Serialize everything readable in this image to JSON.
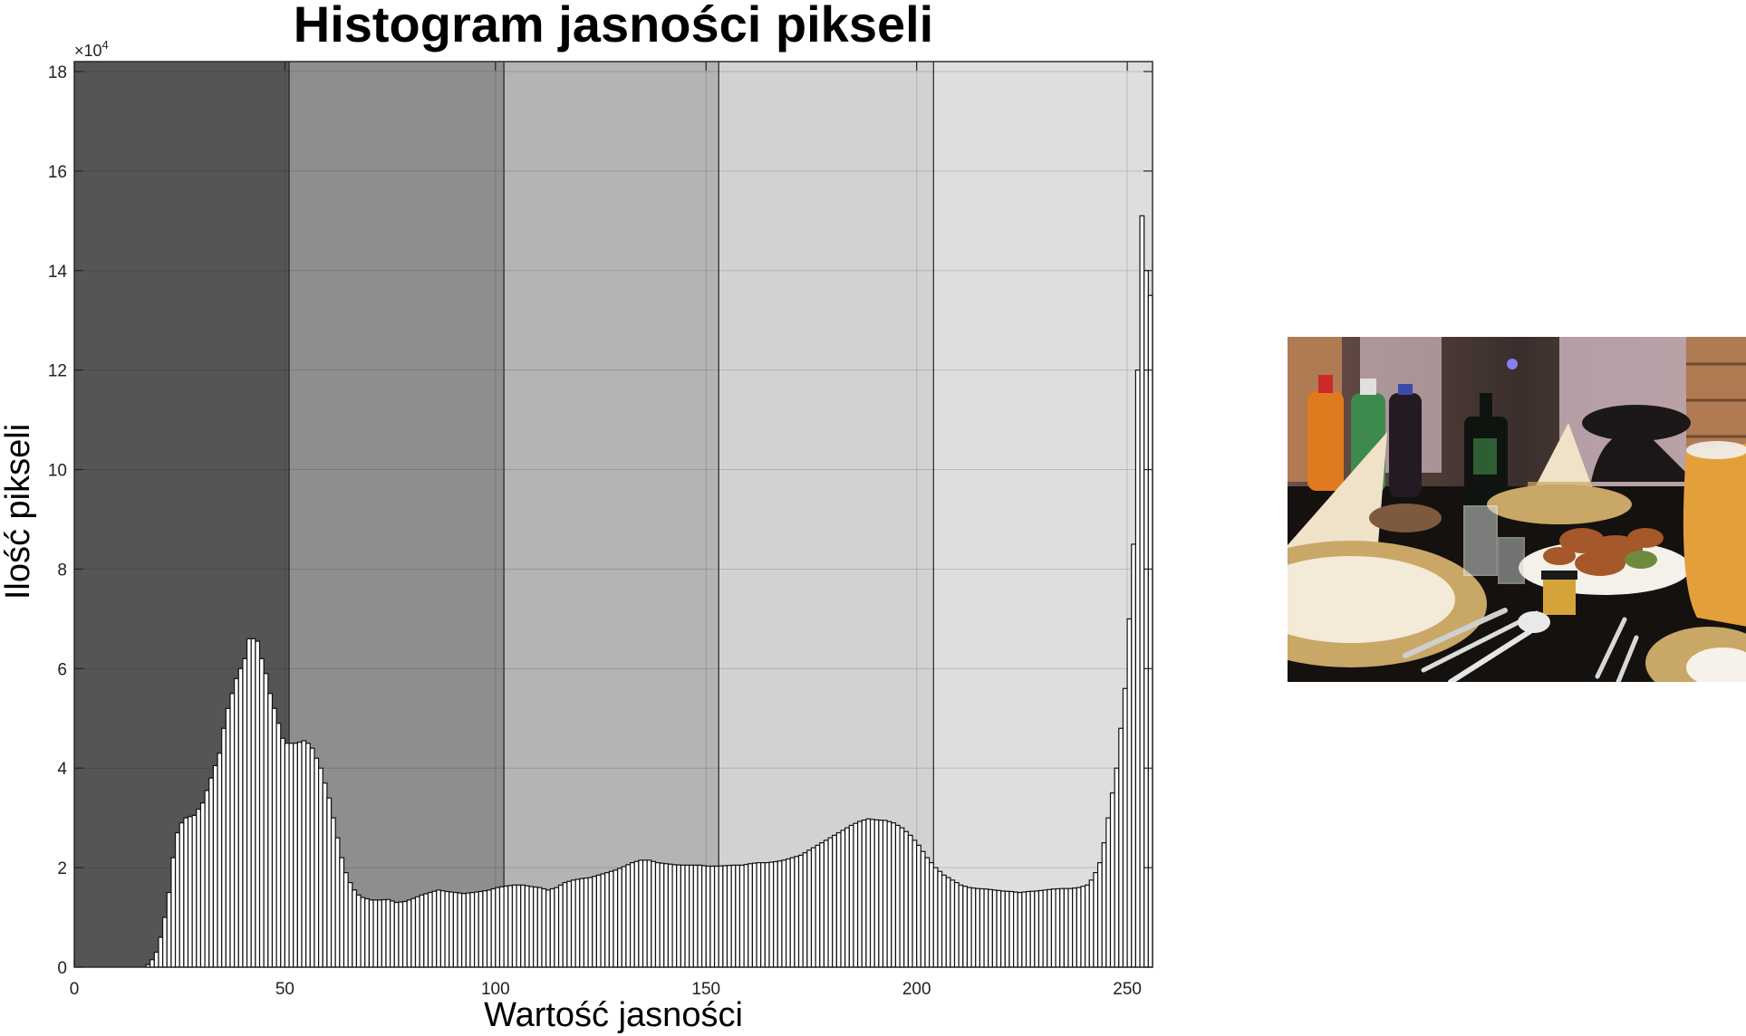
{
  "chart_data": {
    "type": "bar",
    "title": "Histogram jasności pikseli",
    "xlabel": "Wartość jasności",
    "ylabel": "Ilość pikseli",
    "y_exponent_label": "×10",
    "y_exponent_power": "4",
    "xlim": [
      0,
      256
    ],
    "ylim": [
      0,
      18.2
    ],
    "x_ticks": [
      0,
      50,
      100,
      150,
      200,
      250
    ],
    "x_tick_labels": [
      "0",
      "50",
      "100",
      "150",
      "200",
      "250"
    ],
    "y_ticks": [
      0,
      2,
      4,
      6,
      8,
      10,
      12,
      14,
      16,
      18
    ],
    "y_tick_labels": [
      "0",
      "2",
      "4",
      "6",
      "8",
      "10",
      "12",
      "14",
      "16",
      "18"
    ],
    "grid": true,
    "background_bands": [
      {
        "x_start": 0,
        "x_end": 51,
        "color": "#555555"
      },
      {
        "x_start": 51,
        "x_end": 102,
        "color": "#8e8e8e"
      },
      {
        "x_start": 102,
        "x_end": 153,
        "color": "#b4b4b4"
      },
      {
        "x_start": 153,
        "x_end": 204,
        "color": "#d2d2d2"
      },
      {
        "x_start": 204,
        "x_end": 256,
        "color": "#dedede"
      }
    ],
    "bar_color": "#ffffff",
    "bar_edge_color": "#111111",
    "bar_width": 1,
    "keypoints": [
      [
        0,
        0
      ],
      [
        16,
        0
      ],
      [
        17,
        0.05
      ],
      [
        18,
        0.15
      ],
      [
        19,
        0.3
      ],
      [
        20,
        0.6
      ],
      [
        21,
        1.0
      ],
      [
        22,
        1.5
      ],
      [
        23,
        2.2
      ],
      [
        24,
        2.7
      ],
      [
        25,
        2.9
      ],
      [
        26,
        3.0
      ],
      [
        28,
        3.05
      ],
      [
        30,
        3.3
      ],
      [
        32,
        3.8
      ],
      [
        34,
        4.3
      ],
      [
        35,
        4.8
      ],
      [
        36,
        5.2
      ],
      [
        38,
        5.8
      ],
      [
        40,
        6.2
      ],
      [
        41,
        6.6
      ],
      [
        42,
        6.6
      ],
      [
        43,
        6.55
      ],
      [
        44,
        6.2
      ],
      [
        45,
        5.9
      ],
      [
        46,
        5.5
      ],
      [
        47,
        5.2
      ],
      [
        48,
        4.9
      ],
      [
        49,
        4.6
      ],
      [
        50,
        4.5
      ],
      [
        51,
        4.5
      ],
      [
        52,
        4.5
      ],
      [
        53,
        4.52
      ],
      [
        54,
        4.55
      ],
      [
        55,
        4.5
      ],
      [
        56,
        4.4
      ],
      [
        57,
        4.2
      ],
      [
        58,
        4.0
      ],
      [
        59,
        3.7
      ],
      [
        60,
        3.4
      ],
      [
        61,
        3.0
      ],
      [
        62,
        2.6
      ],
      [
        63,
        2.2
      ],
      [
        64,
        1.9
      ],
      [
        65,
        1.7
      ],
      [
        66,
        1.55
      ],
      [
        67,
        1.45
      ],
      [
        68,
        1.4
      ],
      [
        70,
        1.35
      ],
      [
        72,
        1.35
      ],
      [
        74,
        1.36
      ],
      [
        76,
        1.3
      ],
      [
        78,
        1.32
      ],
      [
        80,
        1.38
      ],
      [
        82,
        1.45
      ],
      [
        84,
        1.5
      ],
      [
        86,
        1.55
      ],
      [
        88,
        1.52
      ],
      [
        90,
        1.5
      ],
      [
        92,
        1.48
      ],
      [
        94,
        1.5
      ],
      [
        96,
        1.52
      ],
      [
        98,
        1.55
      ],
      [
        100,
        1.6
      ],
      [
        102,
        1.63
      ],
      [
        104,
        1.65
      ],
      [
        106,
        1.65
      ],
      [
        108,
        1.62
      ],
      [
        110,
        1.6
      ],
      [
        112,
        1.55
      ],
      [
        114,
        1.6
      ],
      [
        116,
        1.7
      ],
      [
        118,
        1.75
      ],
      [
        120,
        1.78
      ],
      [
        122,
        1.8
      ],
      [
        124,
        1.85
      ],
      [
        126,
        1.9
      ],
      [
        128,
        1.95
      ],
      [
        130,
        2.02
      ],
      [
        132,
        2.1
      ],
      [
        134,
        2.15
      ],
      [
        136,
        2.15
      ],
      [
        138,
        2.1
      ],
      [
        140,
        2.08
      ],
      [
        142,
        2.06
      ],
      [
        144,
        2.05
      ],
      [
        146,
        2.05
      ],
      [
        148,
        2.05
      ],
      [
        150,
        2.03
      ],
      [
        152,
        2.03
      ],
      [
        154,
        2.04
      ],
      [
        156,
        2.05
      ],
      [
        158,
        2.05
      ],
      [
        160,
        2.08
      ],
      [
        162,
        2.1
      ],
      [
        164,
        2.1
      ],
      [
        166,
        2.12
      ],
      [
        168,
        2.15
      ],
      [
        170,
        2.2
      ],
      [
        172,
        2.25
      ],
      [
        174,
        2.35
      ],
      [
        176,
        2.45
      ],
      [
        178,
        2.55
      ],
      [
        180,
        2.65
      ],
      [
        182,
        2.75
      ],
      [
        184,
        2.85
      ],
      [
        186,
        2.93
      ],
      [
        188,
        2.98
      ],
      [
        190,
        2.96
      ],
      [
        192,
        2.95
      ],
      [
        194,
        2.9
      ],
      [
        196,
        2.8
      ],
      [
        198,
        2.65
      ],
      [
        200,
        2.45
      ],
      [
        202,
        2.2
      ],
      [
        204,
        2.0
      ],
      [
        206,
        1.85
      ],
      [
        208,
        1.75
      ],
      [
        210,
        1.65
      ],
      [
        212,
        1.6
      ],
      [
        214,
        1.58
      ],
      [
        216,
        1.57
      ],
      [
        218,
        1.55
      ],
      [
        220,
        1.53
      ],
      [
        222,
        1.52
      ],
      [
        224,
        1.5
      ],
      [
        226,
        1.52
      ],
      [
        228,
        1.53
      ],
      [
        230,
        1.55
      ],
      [
        232,
        1.57
      ],
      [
        234,
        1.58
      ],
      [
        236,
        1.58
      ],
      [
        238,
        1.6
      ],
      [
        240,
        1.65
      ],
      [
        241,
        1.75
      ],
      [
        242,
        1.9
      ],
      [
        243,
        2.1
      ],
      [
        244,
        2.5
      ],
      [
        245,
        3.0
      ],
      [
        246,
        3.5
      ],
      [
        247,
        4.0
      ],
      [
        248,
        4.8
      ],
      [
        249,
        5.6
      ],
      [
        250,
        7.0
      ],
      [
        251,
        8.5
      ],
      [
        252,
        12.0
      ],
      [
        253,
        15.1
      ],
      [
        254,
        14.0
      ],
      [
        255,
        13.5
      ]
    ]
  },
  "photo": {
    "icon": "banquet-table-photo",
    "colors": {
      "wall": "#6b5148",
      "curtain": "#c9b1b8",
      "wood": "#b07a52",
      "tablecloth": "#14110f",
      "napkin": "#efe2c8",
      "gold": "#c9a766",
      "food": "#a5582a",
      "orange_bottle": "#e07a1e",
      "green_bottle": "#3d8a4c",
      "cola_bottle": "#231a22",
      "juice": "#e3a03a"
    }
  }
}
